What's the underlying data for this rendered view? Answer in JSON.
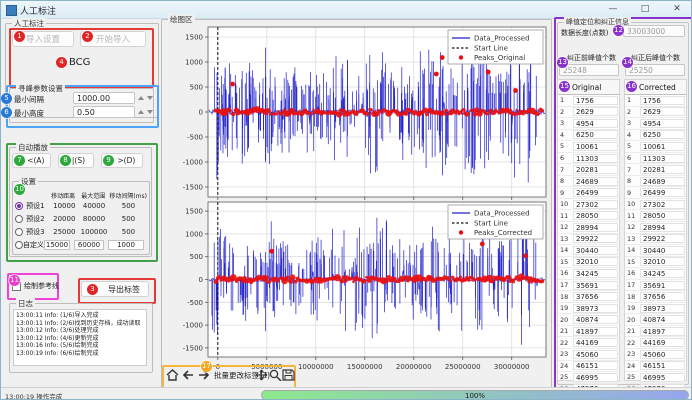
{
  "window": {
    "title": "人工标注",
    "min": "—",
    "max": "□",
    "close": "✕"
  },
  "badges": [
    "1",
    "2",
    "3",
    "4",
    "5",
    "6",
    "7",
    "8",
    "9",
    "10",
    "11",
    "12",
    "13",
    "14",
    "15",
    "16",
    "17"
  ],
  "left": {
    "group_annotate": {
      "title": "人工标注",
      "import_settings": "导入设置",
      "start_import": "开始导入",
      "signal_type": "BCG"
    },
    "group_peak": {
      "title": "寻峰参数设置",
      "min_interval_label": "最小间隔",
      "min_interval_value": "1000.00",
      "min_height_label": "最小高度",
      "min_height_value": "0.50"
    },
    "autoplay": {
      "title": "自动播放",
      "back": "< <(A)",
      "pause": "| |(S)",
      "forward": "> >(D)",
      "settings": {
        "title": "设置",
        "headers": [
          "移动距离",
          "最大范围",
          "移动间隔(ms)"
        ],
        "presets": [
          {
            "label": "预设1",
            "selected": true,
            "editable": false,
            "values": [
              "10000",
              "40000",
              "500"
            ]
          },
          {
            "label": "预设2",
            "selected": false,
            "editable": false,
            "values": [
              "20000",
              "80000",
              "500"
            ]
          },
          {
            "label": "预设3",
            "selected": false,
            "editable": false,
            "values": [
              "25000",
              "100000",
              "500"
            ]
          },
          {
            "label": "自定义",
            "selected": false,
            "editable": true,
            "values": [
              "15000",
              "60000",
              "1000"
            ]
          }
        ]
      }
    },
    "reference_line": {
      "label": "绘制参考线",
      "checked": false
    },
    "export_label": "导出标签",
    "log": {
      "title": "日志",
      "lines": [
        "13:00:11 Info: (1/6)导入完成",
        "13:00:11 Info: (2/6)找到历史存档，成功读取",
        "13:00:12 Info: (3/6)处理完成",
        "13:00:12 Info: (4/6)更新完成",
        "13:00:16 Info: (5/6)绘制完成",
        "13:00:19 Info: (6/6)绘制完成"
      ]
    }
  },
  "plot": {
    "title": "绘图区",
    "toolbar": {
      "batch_label": "批量更改标签(Z)"
    }
  },
  "right": {
    "title": "峰值定位和纠正信息",
    "data_length_label": "数据长度(点数)",
    "data_length_value": "33003000",
    "before_label": "纠正前峰值个数",
    "before_value": "25248",
    "after_label": "纠正后峰值个数",
    "after_value": "25250",
    "original_header": "Original",
    "corrected_header": "Corrected",
    "original_values": [
      1756,
      2629,
      4954,
      6250,
      10061,
      11303,
      20281,
      24689,
      26499,
      27302,
      28050,
      28994,
      29922,
      30440,
      32010,
      34245,
      35691,
      37656,
      38973,
      40874,
      41897,
      44169,
      45060,
      46151,
      46995,
      47878,
      49054
    ],
    "corrected_values": [
      1756,
      2629,
      4954,
      6250,
      10061,
      11303,
      20281,
      24689,
      26499,
      27302,
      28050,
      28994,
      29922,
      30440,
      32010,
      34245,
      35691,
      37656,
      38973,
      40874,
      41897,
      44169,
      45060,
      46151,
      46995,
      47878,
      49054
    ]
  },
  "status": {
    "message": "13:00:19 操作完成",
    "progress": "100%"
  },
  "chart_data": [
    {
      "type": "line",
      "title": "",
      "legend": [
        "Data_Processed",
        "Start Line",
        "Peaks_Original"
      ],
      "legend_position": "upper right",
      "grid": true,
      "x_range_millions": [
        -1,
        33.5
      ],
      "y_range": [
        -1700,
        1700
      ],
      "y_ticks": [
        1500,
        1000,
        500,
        0,
        -500,
        -1000,
        -1500
      ],
      "x_ticks": [
        0,
        5000000,
        10000000,
        15000000,
        20000000,
        25000000,
        30000000
      ],
      "show_x_labels": false,
      "start_line_x": 0,
      "line_color": "#2222cc",
      "peak_color": "#e81111",
      "start_line_color": "#111111",
      "baseline": 0,
      "seed": 12345,
      "bursts_millions": [
        [
          0.15,
          1350
        ],
        [
          0.4,
          1250
        ],
        [
          0.7,
          950
        ],
        [
          1.1,
          600
        ],
        [
          2.6,
          750
        ],
        [
          3.2,
          1050
        ],
        [
          3.6,
          600
        ],
        [
          4.7,
          800
        ],
        [
          5.3,
          1400
        ],
        [
          5.8,
          900
        ],
        [
          6.4,
          650
        ],
        [
          7.4,
          950
        ],
        [
          8.1,
          700
        ],
        [
          9.3,
          850
        ],
        [
          10.1,
          1050
        ],
        [
          10.8,
          620
        ],
        [
          11.9,
          700
        ],
        [
          12.5,
          1150
        ],
        [
          13.6,
          550
        ],
        [
          14.7,
          1200
        ],
        [
          15.5,
          900
        ],
        [
          16.4,
          1450
        ],
        [
          17.3,
          700
        ],
        [
          18.2,
          1000
        ],
        [
          19.0,
          800
        ],
        [
          20.2,
          900
        ],
        [
          21.2,
          1250
        ],
        [
          22.3,
          950
        ],
        [
          23.0,
          1380
        ],
        [
          24.1,
          700
        ],
        [
          25.6,
          1300
        ],
        [
          26.2,
          1500
        ],
        [
          26.9,
          1200
        ],
        [
          28.2,
          850
        ],
        [
          29.2,
          950
        ],
        [
          30.2,
          1250
        ],
        [
          31.0,
          1500
        ],
        [
          31.7,
          1350
        ]
      ],
      "high_peaks": [
        [
          1.5,
          560
        ],
        [
          22.3,
          760
        ],
        [
          22.9,
          1090
        ],
        [
          27.6,
          800
        ],
        [
          30.4,
          430
        ]
      ]
    },
    {
      "type": "line",
      "title": "",
      "legend": [
        "Data_Processed",
        "Start Line",
        "Peaks_Corrected"
      ],
      "legend_position": "upper right",
      "grid": true,
      "x_range_millions": [
        -1,
        33.5
      ],
      "y_range": [
        -1700,
        1700
      ],
      "y_ticks": [
        1500,
        1000,
        500,
        0,
        -500,
        -1000,
        -1500
      ],
      "x_ticks": [
        0,
        5000000,
        10000000,
        15000000,
        20000000,
        25000000,
        30000000
      ],
      "show_x_labels": true,
      "start_line_x": 0,
      "line_color": "#2222cc",
      "peak_color": "#e81111",
      "start_line_color": "#111111",
      "baseline": 0,
      "seed": 54321,
      "bursts_millions": [
        [
          0.2,
          1300
        ],
        [
          0.5,
          1200
        ],
        [
          0.9,
          850
        ],
        [
          2.7,
          800
        ],
        [
          3.3,
          1000
        ],
        [
          4.6,
          700
        ],
        [
          5.2,
          1380
        ],
        [
          5.9,
          900
        ],
        [
          7.3,
          950
        ],
        [
          8.0,
          620
        ],
        [
          9.4,
          820
        ],
        [
          10.2,
          1000
        ],
        [
          11.5,
          720
        ],
        [
          12.3,
          1150
        ],
        [
          13.5,
          520
        ],
        [
          14.8,
          1200
        ],
        [
          15.6,
          880
        ],
        [
          16.5,
          1420
        ],
        [
          17.8,
          780
        ],
        [
          18.6,
          1000
        ],
        [
          19.5,
          650
        ],
        [
          20.4,
          900
        ],
        [
          21.3,
          1200
        ],
        [
          22.4,
          950
        ],
        [
          23.1,
          1350
        ],
        [
          24.0,
          700
        ],
        [
          25.6,
          1300
        ],
        [
          26.3,
          1480
        ],
        [
          27.2,
          1100
        ],
        [
          28.4,
          850
        ],
        [
          29.3,
          950
        ],
        [
          30.3,
          1200
        ],
        [
          31.2,
          1500
        ],
        [
          31.8,
          1300
        ]
      ],
      "high_peaks": [
        [
          5.5,
          620
        ],
        [
          25.2,
          1120
        ],
        [
          27.0,
          780
        ],
        [
          31.4,
          520
        ]
      ]
    }
  ]
}
